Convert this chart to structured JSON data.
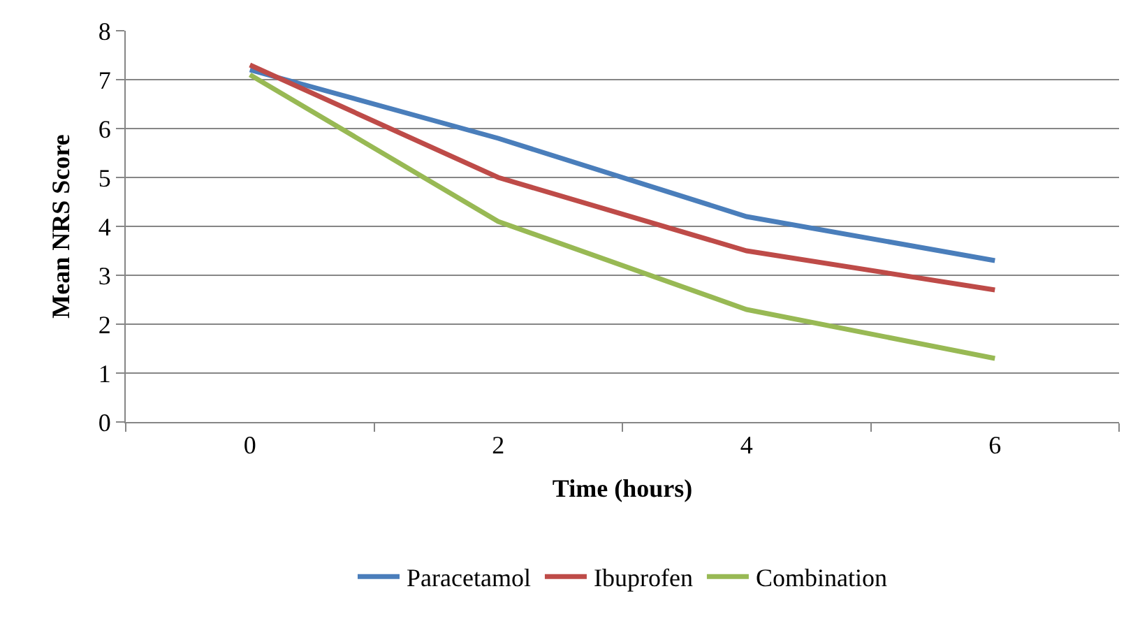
{
  "chart_data": {
    "type": "line",
    "xlabel": "Time (hours)",
    "ylabel": "Mean NRS Score",
    "categories": [
      "0",
      "2",
      "4",
      "6"
    ],
    "series": [
      {
        "name": "Paracetamol",
        "color": "#4a7ebb",
        "values": [
          7.2,
          5.8,
          4.2,
          3.3
        ]
      },
      {
        "name": "Ibuprofen",
        "color": "#be4b48",
        "values": [
          7.3,
          5.0,
          3.5,
          2.7
        ]
      },
      {
        "name": "Combination",
        "color": "#98b954",
        "values": [
          7.1,
          4.1,
          2.3,
          1.3
        ]
      }
    ],
    "ylim": [
      0,
      8
    ],
    "yticks": [
      0,
      1,
      2,
      3,
      4,
      5,
      6,
      7,
      8
    ],
    "grid": "y",
    "legend": "bottom",
    "marker": "none",
    "line_style": "solid"
  }
}
